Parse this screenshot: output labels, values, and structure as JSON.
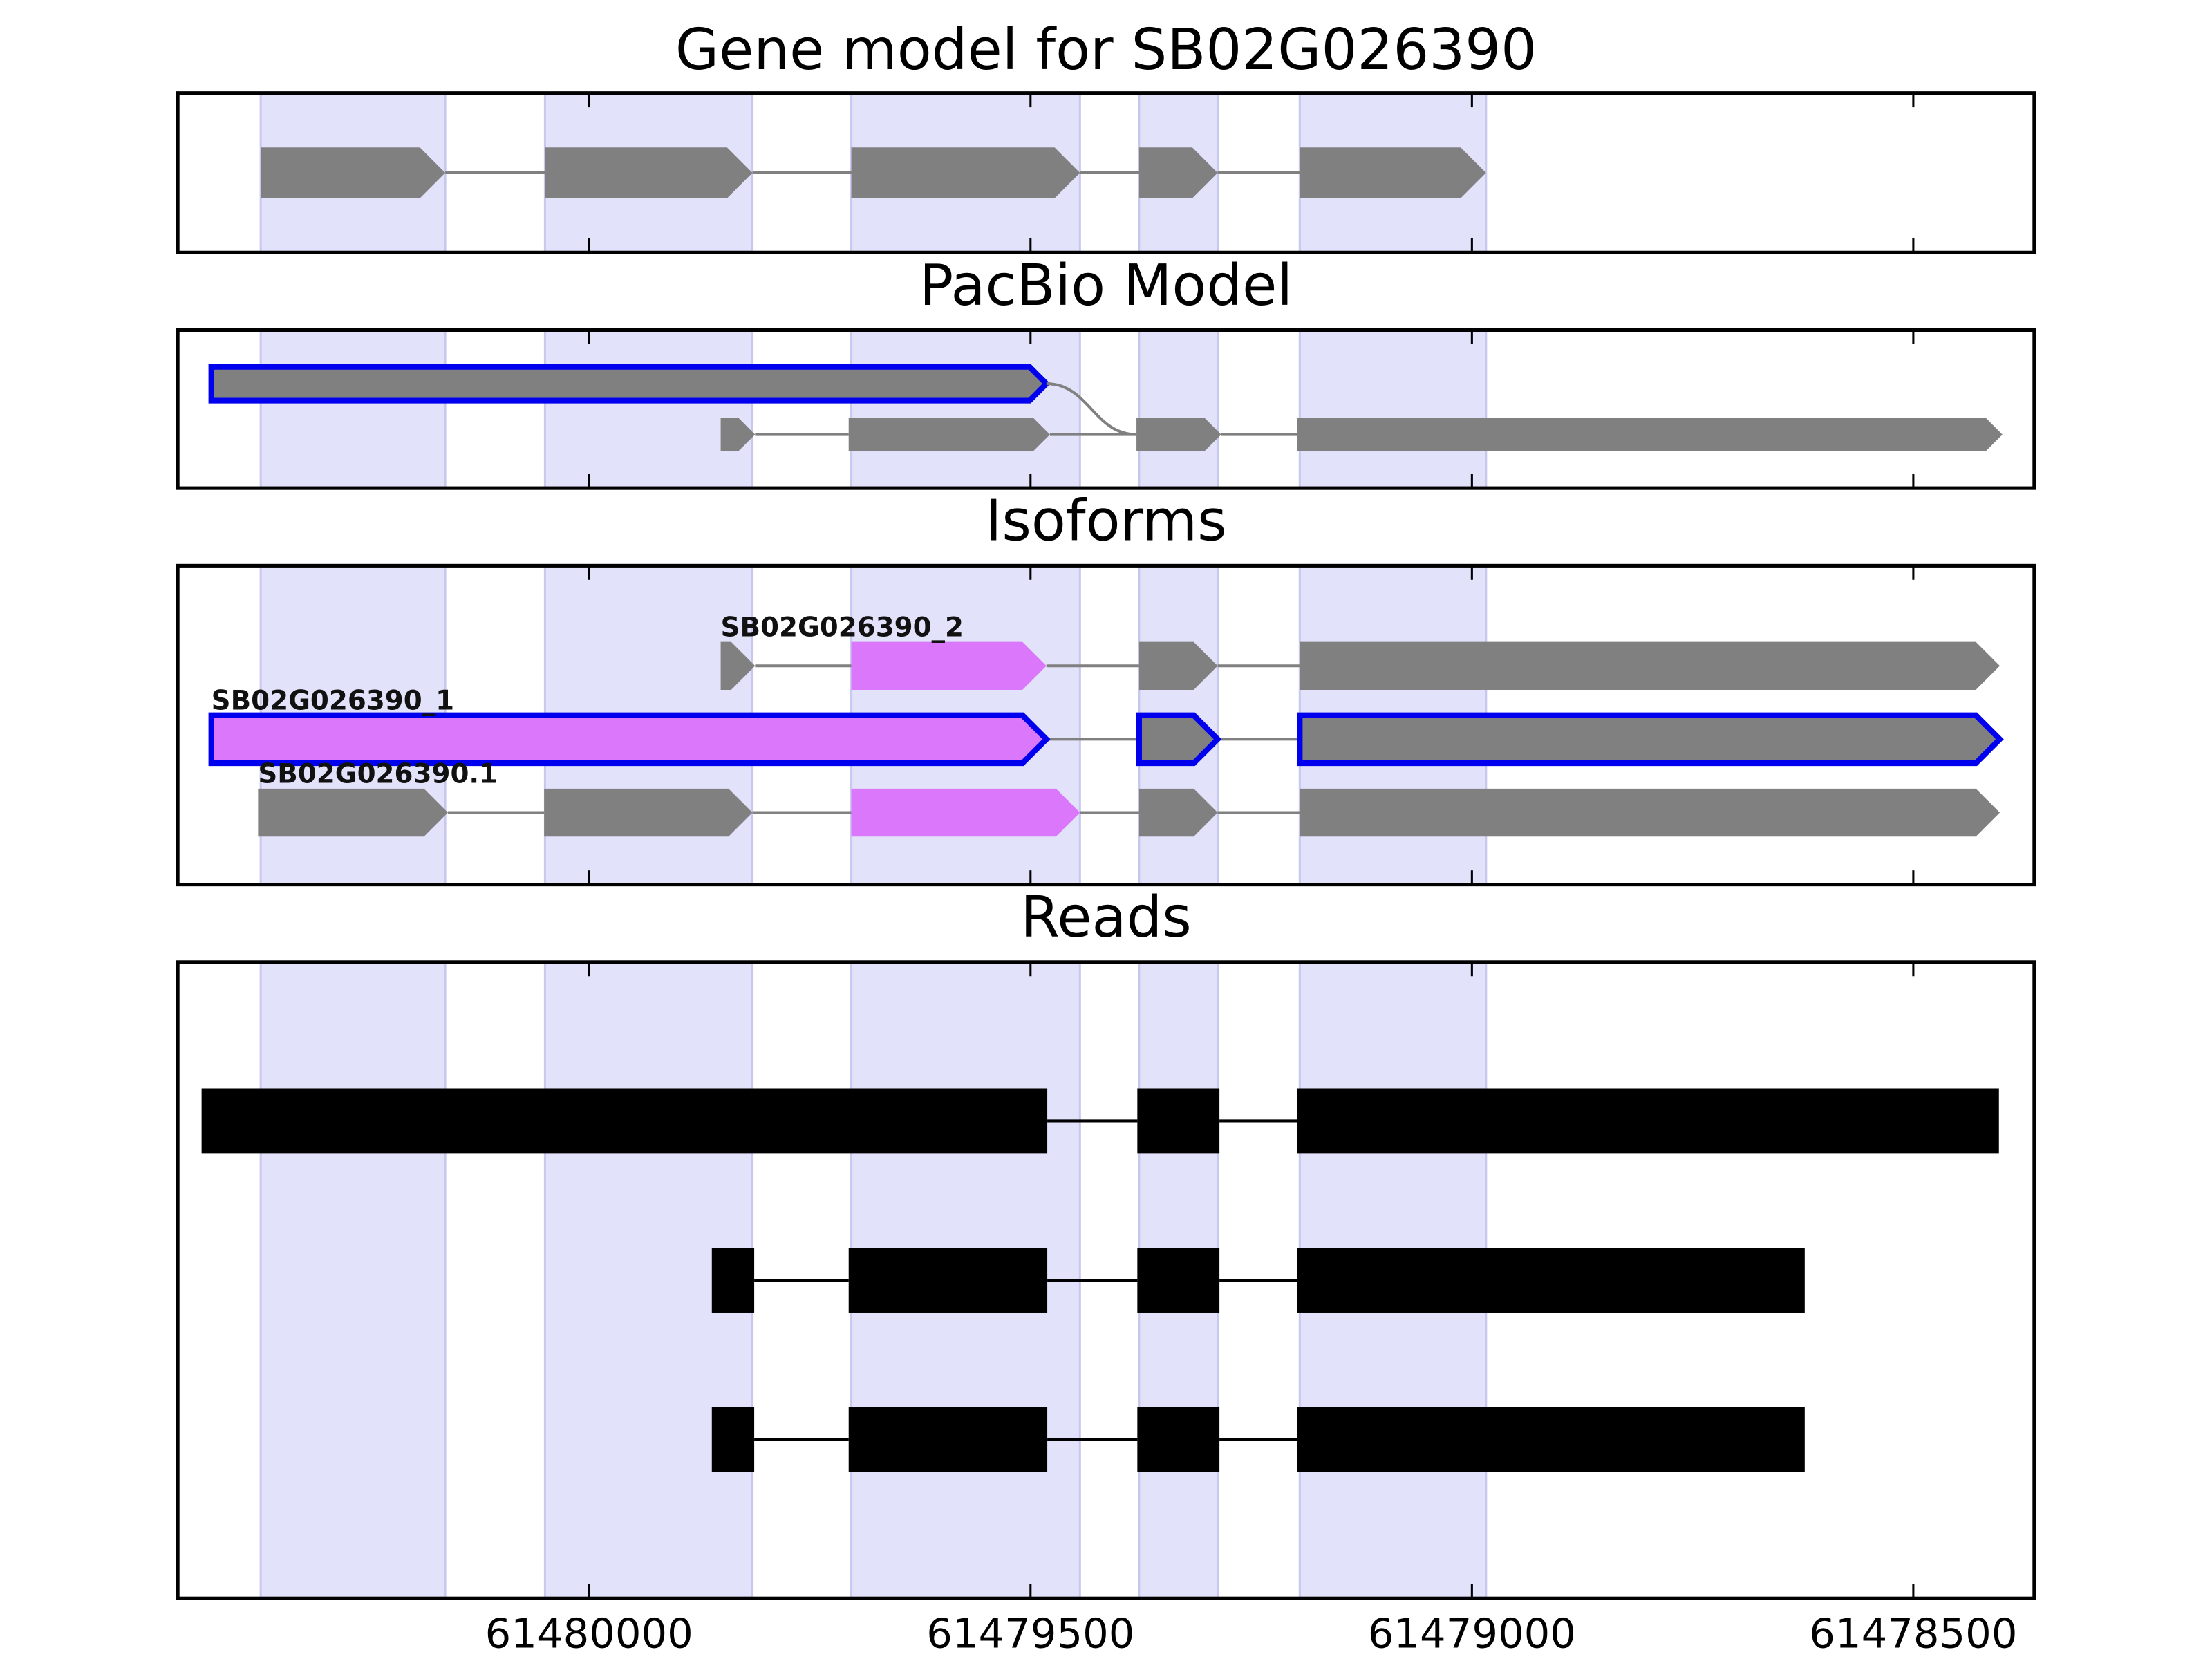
{
  "chart_data": [
    {
      "type": "gene",
      "title": "Gene model for SB02G026390",
      "xlim": [
        61480466,
        61478363
      ],
      "xticks": [
        61480000,
        61479500,
        61479000,
        61478500
      ],
      "bands": [
        [
          61480372,
          61480163
        ],
        [
          61480050,
          61479815
        ],
        [
          61479703,
          61479444
        ],
        [
          61479377,
          61479288
        ],
        [
          61479195,
          61478984
        ]
      ],
      "band_color": "#e2e2fb",
      "tracks": [
        {
          "highlight": false,
          "exons": [
            {
              "range": [
                61480372,
                61480163
              ],
              "color": "#808080"
            },
            {
              "range": [
                61480050,
                61479815
              ],
              "color": "#808080"
            },
            {
              "range": [
                61479703,
                61479444
              ],
              "color": "#808080"
            },
            {
              "range": [
                61479377,
                61479288
              ],
              "color": "#808080"
            },
            {
              "range": [
                61479195,
                61478984
              ],
              "color": "#808080"
            }
          ]
        }
      ]
    },
    {
      "type": "gene",
      "title": "PacBio Model",
      "xlim": [
        61480466,
        61478363
      ],
      "xticks": [
        61480000,
        61479500,
        61479000,
        61478500
      ],
      "bands": [
        [
          61480372,
          61480163
        ],
        [
          61480050,
          61479815
        ],
        [
          61479703,
          61479444
        ],
        [
          61479377,
          61479288
        ],
        [
          61479195,
          61478984
        ]
      ],
      "band_color": "#e2e2fb",
      "tracks": [
        {
          "highlight": true,
          "exons": [
            {
              "range": [
                61480428,
                61479482
              ],
              "color": "#808080"
            }
          ]
        },
        {
          "highlight": false,
          "exons": [
            {
              "range": [
                61479851,
                61479812
              ],
              "color": "#808080"
            },
            {
              "range": [
                61479706,
                61479478
              ],
              "color": "#808080"
            },
            {
              "range": [
                61479380,
                61479284
              ],
              "color": "#808080"
            },
            {
              "range": [
                61479198,
                61478399
              ],
              "color": "#808080"
            }
          ]
        }
      ]
    },
    {
      "type": "gene",
      "title": "Isoforms",
      "xlim": [
        61480466,
        61478363
      ],
      "xticks": [
        61480000,
        61479500,
        61479000,
        61478500
      ],
      "bands": [
        [
          61480372,
          61480163
        ],
        [
          61480050,
          61479815
        ],
        [
          61479703,
          61479444
        ],
        [
          61479377,
          61479288
        ],
        [
          61479195,
          61478984
        ]
      ],
      "band_color": "#e2e2fb",
      "tracks": [
        {
          "name": "SB02G026390_2",
          "highlight": false,
          "exons": [
            {
              "range": [
                61479851,
                61479812
              ],
              "color": "#808080"
            },
            {
              "range": [
                61479703,
                61479482
              ],
              "color": "#da77fb"
            },
            {
              "range": [
                61479377,
                61479288
              ],
              "color": "#808080"
            },
            {
              "range": [
                61479195,
                61478402
              ],
              "color": "#808080"
            }
          ]
        },
        {
          "name": "SB02G026390_1",
          "highlight": true,
          "exons": [
            {
              "range": [
                61480428,
                61479482
              ],
              "color": "#da77fb"
            },
            {
              "range": [
                61479377,
                61479288
              ],
              "color": "#808080"
            },
            {
              "range": [
                61479195,
                61478402
              ],
              "color": "#808080"
            }
          ]
        },
        {
          "name": "SB02G026390.1",
          "highlight": false,
          "exons": [
            {
              "range": [
                61480375,
                61480160
              ],
              "color": "#808080"
            },
            {
              "range": [
                61480051,
                61479815
              ],
              "color": "#808080"
            },
            {
              "range": [
                61479703,
                61479444
              ],
              "color": "#da77fb"
            },
            {
              "range": [
                61479377,
                61479288
              ],
              "color": "#808080"
            },
            {
              "range": [
                61479195,
                61478402
              ],
              "color": "#808080"
            }
          ]
        }
      ]
    },
    {
      "type": "reads",
      "title": "Reads",
      "xlim": [
        61480466,
        61478363
      ],
      "xticks": [
        61480000,
        61479500,
        61479000,
        61478500
      ],
      "bands": [
        [
          61480372,
          61480163
        ],
        [
          61480050,
          61479815
        ],
        [
          61479703,
          61479444
        ],
        [
          61479377,
          61479288
        ],
        [
          61479195,
          61478984
        ]
      ],
      "band_color": "#e2e2fb",
      "tracks": [
        {
          "highlight": false,
          "exons": [
            {
              "range": [
                61480439,
                61479481
              ],
              "color": "#000000"
            },
            {
              "range": [
                61479379,
                61479286
              ],
              "color": "#000000"
            },
            {
              "range": [
                61479198,
                61478403
              ],
              "color": "#000000"
            }
          ]
        },
        {
          "highlight": false,
          "exons": [
            {
              "range": [
                61479861,
                61479813
              ],
              "color": "#000000"
            },
            {
              "range": [
                61479706,
                61479481
              ],
              "color": "#000000"
            },
            {
              "range": [
                61479379,
                61479286
              ],
              "color": "#000000"
            },
            {
              "range": [
                61479198,
                61478623
              ],
              "color": "#000000"
            }
          ]
        },
        {
          "highlight": false,
          "exons": [
            {
              "range": [
                61479861,
                61479813
              ],
              "color": "#000000"
            },
            {
              "range": [
                61479706,
                61479481
              ],
              "color": "#000000"
            },
            {
              "range": [
                61479379,
                61479286
              ],
              "color": "#000000"
            },
            {
              "range": [
                61479198,
                61478623
              ],
              "color": "#000000"
            }
          ]
        }
      ]
    }
  ]
}
